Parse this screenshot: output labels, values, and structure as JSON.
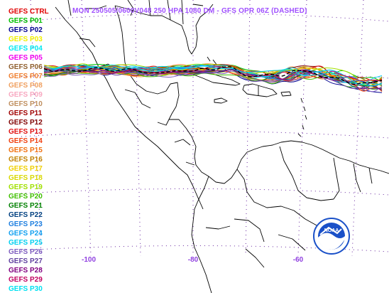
{
  "title": "MON 250505/0600V048  250 HPA 1080 DM - GFS OPR 06Z (DASHED)",
  "members": [
    {
      "label": "GEFS CTRL",
      "color": "#e00000"
    },
    {
      "label": "GEFS P01",
      "color": "#00c000"
    },
    {
      "label": "GEFS P02",
      "color": "#000090"
    },
    {
      "label": "GEFS P03",
      "color": "#f0f000"
    },
    {
      "label": "GEFS P04",
      "color": "#00e8f0"
    },
    {
      "label": "GEFS P05",
      "color": "#f000f0"
    },
    {
      "label": "GEFS P06",
      "color": "#906030"
    },
    {
      "label": "GEFS P07",
      "color": "#f08030"
    },
    {
      "label": "GEFS P08",
      "color": "#f0a060"
    },
    {
      "label": "GEFS P09",
      "color": "#f8a8c0"
    },
    {
      "label": "GEFS P10",
      "color": "#c09060"
    },
    {
      "label": "GEFS P11",
      "color": "#a00000"
    },
    {
      "label": "GEFS P12",
      "color": "#800000"
    },
    {
      "label": "GEFS P13",
      "color": "#e01010"
    },
    {
      "label": "GEFS P14",
      "color": "#f04010"
    },
    {
      "label": "GEFS P15",
      "color": "#f07010"
    },
    {
      "label": "GEFS P16",
      "color": "#c08000"
    },
    {
      "label": "GEFS P17",
      "color": "#f0d000"
    },
    {
      "label": "GEFS P18",
      "color": "#d8d800"
    },
    {
      "label": "GEFS P19",
      "color": "#a0e000"
    },
    {
      "label": "GEFS P20",
      "color": "#40c000"
    },
    {
      "label": "GEFS P21",
      "color": "#008000"
    },
    {
      "label": "GEFS P22",
      "color": "#004080"
    },
    {
      "label": "GEFS P23",
      "color": "#2080e0"
    },
    {
      "label": "GEFS P24",
      "color": "#10a0f0"
    },
    {
      "label": "GEFS P25",
      "color": "#00d0f0"
    },
    {
      "label": "GEFS P26",
      "color": "#8060c0"
    },
    {
      "label": "GEFS P27",
      "color": "#6040a0"
    },
    {
      "label": "GEFS P28",
      "color": "#800080"
    },
    {
      "label": "GEFS P29",
      "color": "#c00060"
    },
    {
      "label": "GEFS P30",
      "color": "#00e0f0"
    }
  ],
  "longitude_labels": [
    {
      "text": "-100",
      "lon": -100
    },
    {
      "text": "-80",
      "lon": -80
    },
    {
      "text": "-60",
      "lon": -60
    }
  ],
  "logo_text": "NOAA",
  "colors": {
    "title": "#a050ff",
    "gridlines": "#6a2aa0",
    "coastline": "#000000",
    "axis_labels": "#9040e0",
    "logo_blue": "#1a50c8"
  }
}
